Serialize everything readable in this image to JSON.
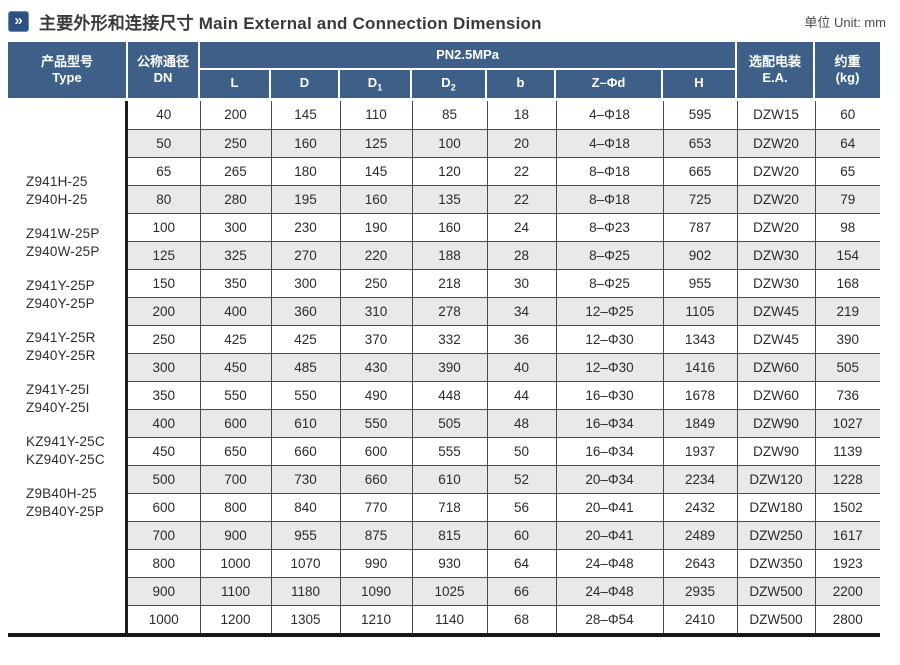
{
  "page": {
    "chevron_icon": "»",
    "title_zh": "主要外形和连接尺寸",
    "title_en": "Main External and Connection Dimension",
    "unit_label": "单位 Unit: mm"
  },
  "colors": {
    "header_blue": "#3e6088",
    "icon_blue": "#2d5181",
    "row_stripe": "#e8eaea",
    "grid_line": "#4b4b4b",
    "heavy_line": "#181818"
  },
  "table": {
    "pressure_header": "PN2.5MPa",
    "columns": {
      "type_zh": "产品型号",
      "type_en": "Type",
      "dn_zh": "公称通径",
      "dn_en": "DN",
      "sub": [
        {
          "main": "L",
          "sub": ""
        },
        {
          "main": "D",
          "sub": ""
        },
        {
          "main": "D",
          "sub": "1"
        },
        {
          "main": "D",
          "sub": "2"
        },
        {
          "main": "b",
          "sub": ""
        },
        {
          "main": "Z–Φd",
          "sub": ""
        },
        {
          "main": "H",
          "sub": ""
        }
      ],
      "ea_zh": "选配电装",
      "ea_en": "E.A.",
      "weight_zh": "约重",
      "weight_en": "(kg)"
    },
    "product_types": [
      [
        "Z941H-25",
        "Z940H-25"
      ],
      [
        "Z941W-25P",
        "Z940W-25P"
      ],
      [
        "Z941Y-25P",
        "Z940Y-25P"
      ],
      [
        "Z941Y-25R",
        "Z940Y-25R"
      ],
      [
        "Z941Y-25I",
        "Z940Y-25I"
      ],
      [
        "KZ941Y-25C",
        "KZ940Y-25C"
      ],
      [
        "Z9B40H-25",
        "Z9B40Y-25P"
      ]
    ],
    "rows": [
      {
        "dn": "40",
        "l": "200",
        "d": "145",
        "d1": "110",
        "d2": "85",
        "b": "18",
        "zd": "4–Φ18",
        "h": "595",
        "ea": "DZW15",
        "kg": "60"
      },
      {
        "dn": "50",
        "l": "250",
        "d": "160",
        "d1": "125",
        "d2": "100",
        "b": "20",
        "zd": "4–Φ18",
        "h": "653",
        "ea": "DZW20",
        "kg": "64"
      },
      {
        "dn": "65",
        "l": "265",
        "d": "180",
        "d1": "145",
        "d2": "120",
        "b": "22",
        "zd": "8–Φ18",
        "h": "665",
        "ea": "DZW20",
        "kg": "65"
      },
      {
        "dn": "80",
        "l": "280",
        "d": "195",
        "d1": "160",
        "d2": "135",
        "b": "22",
        "zd": "8–Φ18",
        "h": "725",
        "ea": "DZW20",
        "kg": "79"
      },
      {
        "dn": "100",
        "l": "300",
        "d": "230",
        "d1": "190",
        "d2": "160",
        "b": "24",
        "zd": "8–Φ23",
        "h": "787",
        "ea": "DZW20",
        "kg": "98"
      },
      {
        "dn": "125",
        "l": "325",
        "d": "270",
        "d1": "220",
        "d2": "188",
        "b": "28",
        "zd": "8–Φ25",
        "h": "902",
        "ea": "DZW30",
        "kg": "154"
      },
      {
        "dn": "150",
        "l": "350",
        "d": "300",
        "d1": "250",
        "d2": "218",
        "b": "30",
        "zd": "8–Φ25",
        "h": "955",
        "ea": "DZW30",
        "kg": "168"
      },
      {
        "dn": "200",
        "l": "400",
        "d": "360",
        "d1": "310",
        "d2": "278",
        "b": "34",
        "zd": "12–Φ25",
        "h": "1105",
        "ea": "DZW45",
        "kg": "219"
      },
      {
        "dn": "250",
        "l": "425",
        "d": "425",
        "d1": "370",
        "d2": "332",
        "b": "36",
        "zd": "12–Φ30",
        "h": "1343",
        "ea": "DZW45",
        "kg": "390"
      },
      {
        "dn": "300",
        "l": "450",
        "d": "485",
        "d1": "430",
        "d2": "390",
        "b": "40",
        "zd": "12–Φ30",
        "h": "1416",
        "ea": "DZW60",
        "kg": "505"
      },
      {
        "dn": "350",
        "l": "550",
        "d": "550",
        "d1": "490",
        "d2": "448",
        "b": "44",
        "zd": "16–Φ30",
        "h": "1678",
        "ea": "DZW60",
        "kg": "736"
      },
      {
        "dn": "400",
        "l": "600",
        "d": "610",
        "d1": "550",
        "d2": "505",
        "b": "48",
        "zd": "16–Φ34",
        "h": "1849",
        "ea": "DZW90",
        "kg": "1027"
      },
      {
        "dn": "450",
        "l": "650",
        "d": "660",
        "d1": "600",
        "d2": "555",
        "b": "50",
        "zd": "16–Φ34",
        "h": "1937",
        "ea": "DZW90",
        "kg": "1139"
      },
      {
        "dn": "500",
        "l": "700",
        "d": "730",
        "d1": "660",
        "d2": "610",
        "b": "52",
        "zd": "20–Φ34",
        "h": "2234",
        "ea": "DZW120",
        "kg": "1228"
      },
      {
        "dn": "600",
        "l": "800",
        "d": "840",
        "d1": "770",
        "d2": "718",
        "b": "56",
        "zd": "20–Φ41",
        "h": "2432",
        "ea": "DZW180",
        "kg": "1502"
      },
      {
        "dn": "700",
        "l": "900",
        "d": "955",
        "d1": "875",
        "d2": "815",
        "b": "60",
        "zd": "20–Φ41",
        "h": "2489",
        "ea": "DZW250",
        "kg": "1617"
      },
      {
        "dn": "800",
        "l": "1000",
        "d": "1070",
        "d1": "990",
        "d2": "930",
        "b": "64",
        "zd": "24–Φ48",
        "h": "2643",
        "ea": "DZW350",
        "kg": "1923"
      },
      {
        "dn": "900",
        "l": "1100",
        "d": "1180",
        "d1": "1090",
        "d2": "1025",
        "b": "66",
        "zd": "24–Φ48",
        "h": "2935",
        "ea": "DZW500",
        "kg": "2200"
      },
      {
        "dn": "1000",
        "l": "1200",
        "d": "1305",
        "d1": "1210",
        "d2": "1140",
        "b": "68",
        "zd": "28–Φ54",
        "h": "2410",
        "ea": "DZW500",
        "kg": "2800"
      }
    ]
  }
}
